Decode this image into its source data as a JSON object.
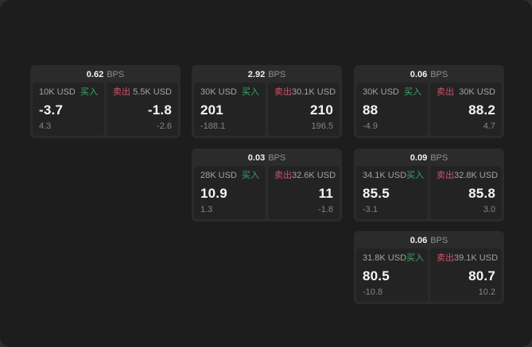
{
  "labels": {
    "bps": "BPS",
    "buy": "买入",
    "sell": "卖出"
  },
  "colors": {
    "page_bg": "#2e2e2e",
    "panel_bg": "#1d1d1d",
    "card_bg": "#2b2b2c",
    "tile_bg": "#232324",
    "text_primary": "#f5f5f5",
    "text_muted": "#a3a3a3",
    "text_dim": "#858585",
    "buy_green": "#3aa968",
    "sell_red": "#cd5468"
  },
  "cards": [
    {
      "bps": "0.62",
      "buy": {
        "size": "10K USD",
        "price": "-3.7",
        "delta": "4.3"
      },
      "sell": {
        "size": "5.5K USD",
        "price": "-1.8",
        "delta": "-2.6"
      }
    },
    {
      "bps": "2.92",
      "buy": {
        "size": "30K USD",
        "price": "201",
        "delta": "-188.1"
      },
      "sell": {
        "size": "30.1K USD",
        "price": "210",
        "delta": "196.5"
      }
    },
    {
      "bps": "0.06",
      "buy": {
        "size": "30K USD",
        "price": "88",
        "delta": "-4.9"
      },
      "sell": {
        "size": "30K USD",
        "price": "88.2",
        "delta": "4.7"
      }
    },
    {
      "bps": "0.03",
      "buy": {
        "size": "28K USD",
        "price": "10.9",
        "delta": "1.3"
      },
      "sell": {
        "size": "32.6K USD",
        "price": "11",
        "delta": "-1.8"
      }
    },
    {
      "bps": "0.09",
      "buy": {
        "size": "34.1K USD",
        "price": "85.5",
        "delta": "-3.1"
      },
      "sell": {
        "size": "32.8K USD",
        "price": "85.8",
        "delta": "3.0"
      }
    },
    {
      "bps": "0.06",
      "buy": {
        "size": "31.8K USD",
        "price": "80.5",
        "delta": "-10.8"
      },
      "sell": {
        "size": "39.1K USD",
        "price": "80.7",
        "delta": "10.2"
      }
    }
  ]
}
